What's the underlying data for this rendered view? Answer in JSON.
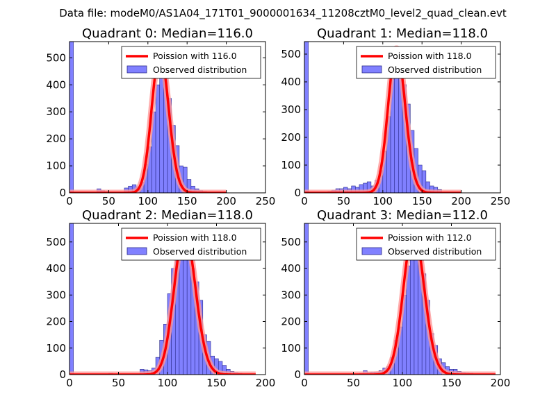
{
  "figure_title": "Data file: modeM0/AS1A04_171T01_9000001634_11208cztM0_level2_quad_clean.evt",
  "colors": {
    "bar_fill": "#8080ff",
    "bar_edge": "#2a2a8a",
    "poisson_line": "#ff0000",
    "poisson_glow": "#ff9999",
    "axis": "#000000"
  },
  "chart_data": [
    {
      "type": "bar",
      "title": "Quadrant 0: Median=116.0",
      "median": 116.0,
      "xlim": [
        0,
        250
      ],
      "ylim": [
        0,
        560
      ],
      "xticks": [
        0,
        50,
        100,
        150,
        200,
        250
      ],
      "yticks": [
        0,
        100,
        200,
        300,
        400,
        500
      ],
      "bin_width": 5,
      "legend": [
        "Poission with 116.0",
        "Observed distribution"
      ],
      "series": [
        {
          "name": "Observed distribution",
          "bin_left": [
            0,
            35,
            40,
            45,
            70,
            75,
            80,
            85,
            90,
            95,
            100,
            105,
            110,
            115,
            120,
            125,
            130,
            135,
            140,
            145,
            150,
            155,
            160,
            165,
            170
          ],
          "values": [
            560,
            15,
            8,
            5,
            18,
            25,
            30,
            22,
            40,
            105,
            170,
            300,
            400,
            445,
            425,
            350,
            250,
            175,
            100,
            95,
            50,
            25,
            15,
            8,
            5
          ]
        },
        {
          "name": "Poission with 116.0",
          "type": "line",
          "x_range": [
            0,
            200
          ],
          "mean": 116.0,
          "peak": 520
        }
      ]
    },
    {
      "type": "bar",
      "title": "Quadrant 1: Median=118.0",
      "median": 118.0,
      "xlim": [
        0,
        250
      ],
      "ylim": [
        0,
        545
      ],
      "xticks": [
        0,
        50,
        100,
        150,
        200,
        250
      ],
      "yticks": [
        0,
        100,
        200,
        300,
        400,
        500
      ],
      "bin_width": 5,
      "legend": [
        "Poission with 118.0",
        "Observed distribution"
      ],
      "series": [
        {
          "name": "Observed distribution",
          "bin_left": [
            0,
            30,
            35,
            40,
            45,
            50,
            55,
            60,
            65,
            70,
            75,
            80,
            85,
            90,
            95,
            100,
            105,
            110,
            115,
            120,
            125,
            130,
            135,
            140,
            145,
            150,
            155,
            160,
            165,
            170
          ],
          "values": [
            545,
            5,
            10,
            15,
            15,
            20,
            15,
            25,
            20,
            30,
            35,
            40,
            25,
            45,
            80,
            150,
            275,
            410,
            450,
            425,
            390,
            320,
            225,
            160,
            100,
            80,
            40,
            25,
            20,
            12
          ]
        },
        {
          "name": "Poission with 118.0",
          "type": "line",
          "x_range": [
            0,
            200
          ],
          "mean": 118.0,
          "peak": 520
        }
      ]
    },
    {
      "type": "bar",
      "title": "Quadrant 2: Median=118.0",
      "median": 118.0,
      "xlim": [
        0,
        200
      ],
      "ylim": [
        0,
        570
      ],
      "xticks": [
        0,
        50,
        100,
        150,
        200
      ],
      "yticks": [
        0,
        100,
        200,
        300,
        400,
        500
      ],
      "bin_width": 4,
      "legend": [
        "Poission with 118.0",
        "Observed distribution"
      ],
      "series": [
        {
          "name": "Observed distribution",
          "bin_left": [
            0,
            40,
            72,
            76,
            80,
            84,
            88,
            92,
            96,
            100,
            104,
            108,
            112,
            116,
            120,
            124,
            128,
            132,
            136,
            140,
            144,
            148,
            152,
            156,
            160,
            164,
            168,
            172,
            176,
            180
          ],
          "values": [
            570,
            5,
            20,
            18,
            15,
            25,
            65,
            130,
            190,
            305,
            400,
            440,
            460,
            470,
            480,
            400,
            350,
            280,
            150,
            125,
            70,
            60,
            50,
            35,
            20,
            12,
            8,
            5,
            3,
            2
          ]
        },
        {
          "name": "Poission with 118.0",
          "type": "line",
          "x_range": [
            0,
            190
          ],
          "mean": 118.0,
          "peak": 540
        }
      ]
    },
    {
      "type": "bar",
      "title": "Quadrant 3: Median=112.0",
      "median": 112.0,
      "xlim": [
        0,
        200
      ],
      "ylim": [
        0,
        570
      ],
      "xticks": [
        0,
        50,
        100,
        150,
        200
      ],
      "yticks": [
        0,
        100,
        200,
        300,
        400,
        500
      ],
      "bin_width": 4,
      "legend": [
        "Poission with 112.0",
        "Observed distribution"
      ],
      "series": [
        {
          "name": "Observed distribution",
          "bin_left": [
            0,
            56,
            60,
            64,
            68,
            72,
            76,
            80,
            84,
            88,
            92,
            96,
            100,
            104,
            108,
            112,
            116,
            120,
            124,
            128,
            132,
            136,
            140,
            144,
            148,
            152,
            156,
            160,
            164,
            168,
            172,
            176
          ],
          "values": [
            570,
            5,
            15,
            8,
            10,
            10,
            15,
            25,
            30,
            65,
            130,
            180,
            300,
            410,
            440,
            460,
            440,
            380,
            280,
            155,
            110,
            60,
            45,
            30,
            20,
            20,
            12,
            8,
            6,
            5,
            3,
            2
          ]
        },
        {
          "name": "Poission with 112.0",
          "type": "line",
          "x_range": [
            0,
            195
          ],
          "mean": 112.0,
          "peak": 540
        }
      ]
    }
  ]
}
